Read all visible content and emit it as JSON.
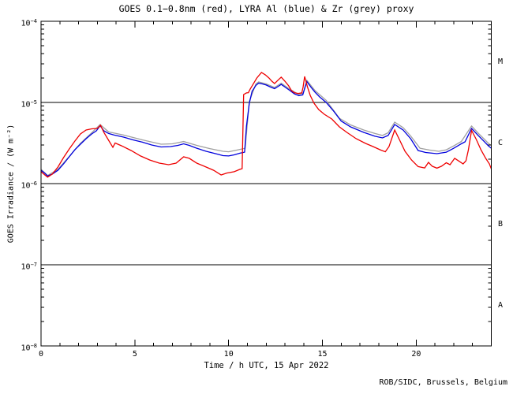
{
  "footer": {
    "credit": "ROB/SIDC, Brussels, Belgium"
  },
  "chart_data": {
    "type": "line",
    "title": "GOES 0.1−0.8nm (red), LYRA Al (blue) & Zr (grey) proxy",
    "xlabel": "Time / h UTC, 15 Apr 2022",
    "ylabel": "GOES Irradiance / (W m⁻²)",
    "xlim": [
      0,
      24
    ],
    "x_major_ticks": [
      0,
      5,
      10,
      15,
      20
    ],
    "x_minor_step": 1,
    "ylog": true,
    "ylim": [
      1e-08,
      0.0001
    ],
    "y_tick_exponents": [
      -4,
      -5,
      -6,
      -7,
      -8
    ],
    "flare_class_boundaries": [
      1e-05,
      1e-06,
      1e-07
    ],
    "flare_class_labels": [
      {
        "label": "M",
        "at": 3.16e-05
      },
      {
        "label": "C",
        "at": 3.16e-06
      },
      {
        "label": "B",
        "at": 3.16e-07
      },
      {
        "label": "A",
        "at": 3.16e-08
      }
    ],
    "axis_color": "#000000",
    "series": [
      {
        "id": "lyra_zr",
        "name": "LYRA Zr proxy (grey)",
        "color": "#a0a0a0",
        "points": [
          [
            0.0,
            1.5e-06
          ],
          [
            0.35,
            1.26e-06
          ],
          [
            0.9,
            1.5e-06
          ],
          [
            1.5,
            2.16e-06
          ],
          [
            2.1,
            3.13e-06
          ],
          [
            2.7,
            4.23e-06
          ],
          [
            3.15,
            5.35e-06
          ],
          [
            3.6,
            4.33e-06
          ],
          [
            4.4,
            3.96e-06
          ],
          [
            5.4,
            3.46e-06
          ],
          [
            6.4,
            3.06e-06
          ],
          [
            7.0,
            3.09e-06
          ],
          [
            7.6,
            3.3e-06
          ],
          [
            8.3,
            2.96e-06
          ],
          [
            9.0,
            2.7e-06
          ],
          [
            9.7,
            2.5e-06
          ],
          [
            10.0,
            2.47e-06
          ],
          [
            10.6,
            2.64e-06
          ],
          [
            10.88,
            2.73e-06
          ],
          [
            11.1,
            1.03e-05
          ],
          [
            11.45,
            1.69e-05
          ],
          [
            11.6,
            1.79e-05
          ],
          [
            12.0,
            1.69e-05
          ],
          [
            12.45,
            1.53e-05
          ],
          [
            12.8,
            1.73e-05
          ],
          [
            13.25,
            1.46e-05
          ],
          [
            13.75,
            1.25e-05
          ],
          [
            13.97,
            1.3e-05
          ],
          [
            14.17,
            1.87e-05
          ],
          [
            14.6,
            1.4e-05
          ],
          [
            15.2,
            1.06e-05
          ],
          [
            15.9,
            6.4e-06
          ],
          [
            16.5,
            5.29e-06
          ],
          [
            17.2,
            4.57e-06
          ],
          [
            17.8,
            4.14e-06
          ],
          [
            18.2,
            3.92e-06
          ],
          [
            18.5,
            4.23e-06
          ],
          [
            18.85,
            5.72e-06
          ],
          [
            19.3,
            4.89e-06
          ],
          [
            19.7,
            3.87e-06
          ],
          [
            20.2,
            2.73e-06
          ],
          [
            20.7,
            2.59e-06
          ],
          [
            21.2,
            2.5e-06
          ],
          [
            21.6,
            2.61e-06
          ],
          [
            22.0,
            2.92e-06
          ],
          [
            22.4,
            3.3e-06
          ],
          [
            22.95,
            5.12e-06
          ],
          [
            23.3,
            4.18e-06
          ],
          [
            23.6,
            3.58e-06
          ],
          [
            23.85,
            3.13e-06
          ],
          [
            24.0,
            2.96e-06
          ]
        ]
      },
      {
        "id": "lyra_al",
        "name": "LYRA Al (blue)",
        "color": "#0000dd",
        "points": [
          [
            0.0,
            1.46e-06
          ],
          [
            0.2,
            1.34e-06
          ],
          [
            0.35,
            1.24e-06
          ],
          [
            0.6,
            1.31e-06
          ],
          [
            0.9,
            1.46e-06
          ],
          [
            1.2,
            1.75e-06
          ],
          [
            1.5,
            2.14e-06
          ],
          [
            1.8,
            2.61e-06
          ],
          [
            2.1,
            3.06e-06
          ],
          [
            2.4,
            3.58e-06
          ],
          [
            2.7,
            4.09e-06
          ],
          [
            2.95,
            4.47e-06
          ],
          [
            3.15,
            5.17e-06
          ],
          [
            3.35,
            4.47e-06
          ],
          [
            3.6,
            4.14e-06
          ],
          [
            3.9,
            3.96e-06
          ],
          [
            4.4,
            3.74e-06
          ],
          [
            4.9,
            3.46e-06
          ],
          [
            5.4,
            3.24e-06
          ],
          [
            5.9,
            2.99e-06
          ],
          [
            6.4,
            2.83e-06
          ],
          [
            6.9,
            2.86e-06
          ],
          [
            7.3,
            2.96e-06
          ],
          [
            7.6,
            3.09e-06
          ],
          [
            7.9,
            2.96e-06
          ],
          [
            8.3,
            2.73e-06
          ],
          [
            8.8,
            2.5e-06
          ],
          [
            9.3,
            2.34e-06
          ],
          [
            9.7,
            2.21e-06
          ],
          [
            10.0,
            2.19e-06
          ],
          [
            10.3,
            2.26e-06
          ],
          [
            10.6,
            2.37e-06
          ],
          [
            10.85,
            2.44e-06
          ],
          [
            10.95,
            5.12e-06
          ],
          [
            11.1,
            9.78e-06
          ],
          [
            11.25,
            1.37e-05
          ],
          [
            11.45,
            1.62e-05
          ],
          [
            11.6,
            1.73e-05
          ],
          [
            11.8,
            1.69e-05
          ],
          [
            12.0,
            1.64e-05
          ],
          [
            12.2,
            1.56e-05
          ],
          [
            12.45,
            1.48e-05
          ],
          [
            12.65,
            1.58e-05
          ],
          [
            12.8,
            1.67e-05
          ],
          [
            13.0,
            1.55e-05
          ],
          [
            13.25,
            1.41e-05
          ],
          [
            13.5,
            1.28e-05
          ],
          [
            13.75,
            1.21e-05
          ],
          [
            13.95,
            1.24e-05
          ],
          [
            14.08,
            1.56e-05
          ],
          [
            14.17,
            1.81e-05
          ],
          [
            14.4,
            1.53e-05
          ],
          [
            14.6,
            1.34e-05
          ],
          [
            14.85,
            1.17e-05
          ],
          [
            15.2,
            1e-05
          ],
          [
            15.6,
            7.8e-06
          ],
          [
            16.0,
            5.9e-06
          ],
          [
            16.5,
            5e-06
          ],
          [
            17.2,
            4.28e-06
          ],
          [
            17.8,
            3.83e-06
          ],
          [
            18.2,
            3.66e-06
          ],
          [
            18.5,
            3.92e-06
          ],
          [
            18.85,
            5.35e-06
          ],
          [
            19.3,
            4.57e-06
          ],
          [
            19.7,
            3.58e-06
          ],
          [
            20.1,
            2.56e-06
          ],
          [
            20.5,
            2.42e-06
          ],
          [
            21.1,
            2.34e-06
          ],
          [
            21.6,
            2.44e-06
          ],
          [
            22.0,
            2.73e-06
          ],
          [
            22.4,
            3.09e-06
          ],
          [
            22.6,
            3.27e-06
          ],
          [
            22.95,
            4.78e-06
          ],
          [
            23.3,
            3.92e-06
          ],
          [
            23.6,
            3.34e-06
          ],
          [
            23.85,
            2.92e-06
          ],
          [
            24.0,
            2.73e-06
          ]
        ]
      },
      {
        "id": "goes_xrs",
        "name": "GOES 0.1−0.8nm (red)",
        "color": "#ee0000",
        "points": [
          [
            0.0,
            1.4e-06
          ],
          [
            0.2,
            1.28e-06
          ],
          [
            0.35,
            1.2e-06
          ],
          [
            0.6,
            1.31e-06
          ],
          [
            0.9,
            1.6e-06
          ],
          [
            1.2,
            2.09e-06
          ],
          [
            1.5,
            2.67e-06
          ],
          [
            1.8,
            3.34e-06
          ],
          [
            2.1,
            4.09e-06
          ],
          [
            2.4,
            4.57e-06
          ],
          [
            2.7,
            4.73e-06
          ],
          [
            3.0,
            4.78e-06
          ],
          [
            3.17,
            5.23e-06
          ],
          [
            3.35,
            4.28e-06
          ],
          [
            3.6,
            3.42e-06
          ],
          [
            3.83,
            2.8e-06
          ],
          [
            3.95,
            3.16e-06
          ],
          [
            4.3,
            2.92e-06
          ],
          [
            4.8,
            2.56e-06
          ],
          [
            5.3,
            2.19e-06
          ],
          [
            5.8,
            1.95e-06
          ],
          [
            6.3,
            1.79e-06
          ],
          [
            6.8,
            1.71e-06
          ],
          [
            7.2,
            1.79e-06
          ],
          [
            7.6,
            2.14e-06
          ],
          [
            7.9,
            2.05e-06
          ],
          [
            8.3,
            1.79e-06
          ],
          [
            8.8,
            1.6e-06
          ],
          [
            9.2,
            1.46e-06
          ],
          [
            9.6,
            1.28e-06
          ],
          [
            9.9,
            1.35e-06
          ],
          [
            10.3,
            1.4e-06
          ],
          [
            10.6,
            1.5e-06
          ],
          [
            10.72,
            1.53e-06
          ],
          [
            10.8,
            1.25e-05
          ],
          [
            10.95,
            1.31e-05
          ],
          [
            11.05,
            1.32e-05
          ],
          [
            11.15,
            1.46e-05
          ],
          [
            11.3,
            1.67e-05
          ],
          [
            11.5,
            2e-05
          ],
          [
            11.75,
            2.34e-05
          ],
          [
            11.95,
            2.19e-05
          ],
          [
            12.15,
            2e-05
          ],
          [
            12.3,
            1.83e-05
          ],
          [
            12.45,
            1.71e-05
          ],
          [
            12.65,
            1.9e-05
          ],
          [
            12.8,
            2.05e-05
          ],
          [
            13.0,
            1.83e-05
          ],
          [
            13.2,
            1.6e-05
          ],
          [
            13.35,
            1.4e-05
          ],
          [
            13.5,
            1.32e-05
          ],
          [
            13.7,
            1.29e-05
          ],
          [
            13.9,
            1.31e-05
          ],
          [
            13.97,
            1.56e-05
          ],
          [
            14.05,
            2.09e-05
          ],
          [
            14.2,
            1.56e-05
          ],
          [
            14.35,
            1.22e-05
          ],
          [
            14.55,
            9.78e-06
          ],
          [
            14.8,
            8.18e-06
          ],
          [
            15.1,
            7.15e-06
          ],
          [
            15.5,
            6.25e-06
          ],
          [
            15.9,
            5e-06
          ],
          [
            16.3,
            4.28e-06
          ],
          [
            16.8,
            3.58e-06
          ],
          [
            17.3,
            3.13e-06
          ],
          [
            17.7,
            2.86e-06
          ],
          [
            18.1,
            2.59e-06
          ],
          [
            18.35,
            2.47e-06
          ],
          [
            18.55,
            2.86e-06
          ],
          [
            18.85,
            4.57e-06
          ],
          [
            19.1,
            3.5e-06
          ],
          [
            19.4,
            2.5e-06
          ],
          [
            19.75,
            1.95e-06
          ],
          [
            20.1,
            1.62e-06
          ],
          [
            20.45,
            1.56e-06
          ],
          [
            20.65,
            1.83e-06
          ],
          [
            20.85,
            1.64e-06
          ],
          [
            21.1,
            1.55e-06
          ],
          [
            21.35,
            1.64e-06
          ],
          [
            21.6,
            1.81e-06
          ],
          [
            21.8,
            1.71e-06
          ],
          [
            22.05,
            2.05e-06
          ],
          [
            22.25,
            1.91e-06
          ],
          [
            22.5,
            1.75e-06
          ],
          [
            22.65,
            1.91e-06
          ],
          [
            22.78,
            2.61e-06
          ],
          [
            22.95,
            4.52e-06
          ],
          [
            23.2,
            3.5e-06
          ],
          [
            23.45,
            2.61e-06
          ],
          [
            23.7,
            2.05e-06
          ],
          [
            23.9,
            1.75e-06
          ],
          [
            24.0,
            1.52e-06
          ]
        ]
      }
    ]
  }
}
